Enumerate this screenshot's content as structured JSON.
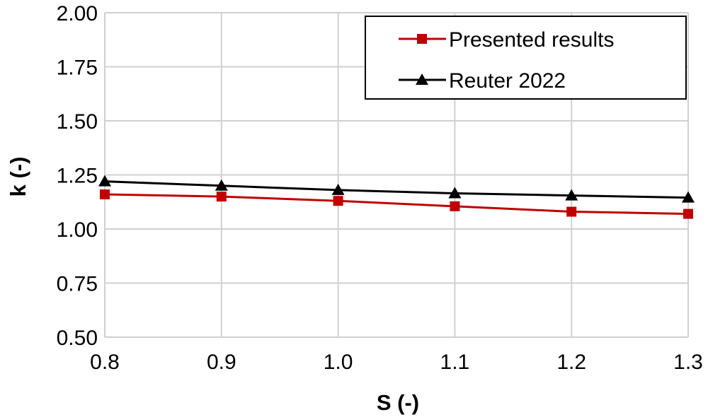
{
  "chart_data": {
    "type": "line",
    "xlabel": "S (-)",
    "ylabel": "k (-)",
    "x": [
      0.8,
      0.9,
      1.0,
      1.1,
      1.2,
      1.3
    ],
    "x_ticks": [
      "0.8",
      "0.9",
      "1.0",
      "1.1",
      "1.2",
      "1.3"
    ],
    "y_ticks": [
      "0.50",
      "0.75",
      "1.00",
      "1.25",
      "1.50",
      "1.75",
      "2.00"
    ],
    "xlim": [
      0.8,
      1.3
    ],
    "ylim": [
      0.5,
      2.0
    ],
    "grid": true,
    "legend_position": "top-right",
    "series": [
      {
        "name": "Presented results",
        "values": [
          1.16,
          1.15,
          1.13,
          1.105,
          1.08,
          1.07
        ],
        "color": "#c00000",
        "marker": "square"
      },
      {
        "name": "Reuter 2022",
        "values": [
          1.22,
          1.2,
          1.18,
          1.165,
          1.155,
          1.145
        ],
        "color": "#000000",
        "marker": "triangle"
      }
    ]
  }
}
